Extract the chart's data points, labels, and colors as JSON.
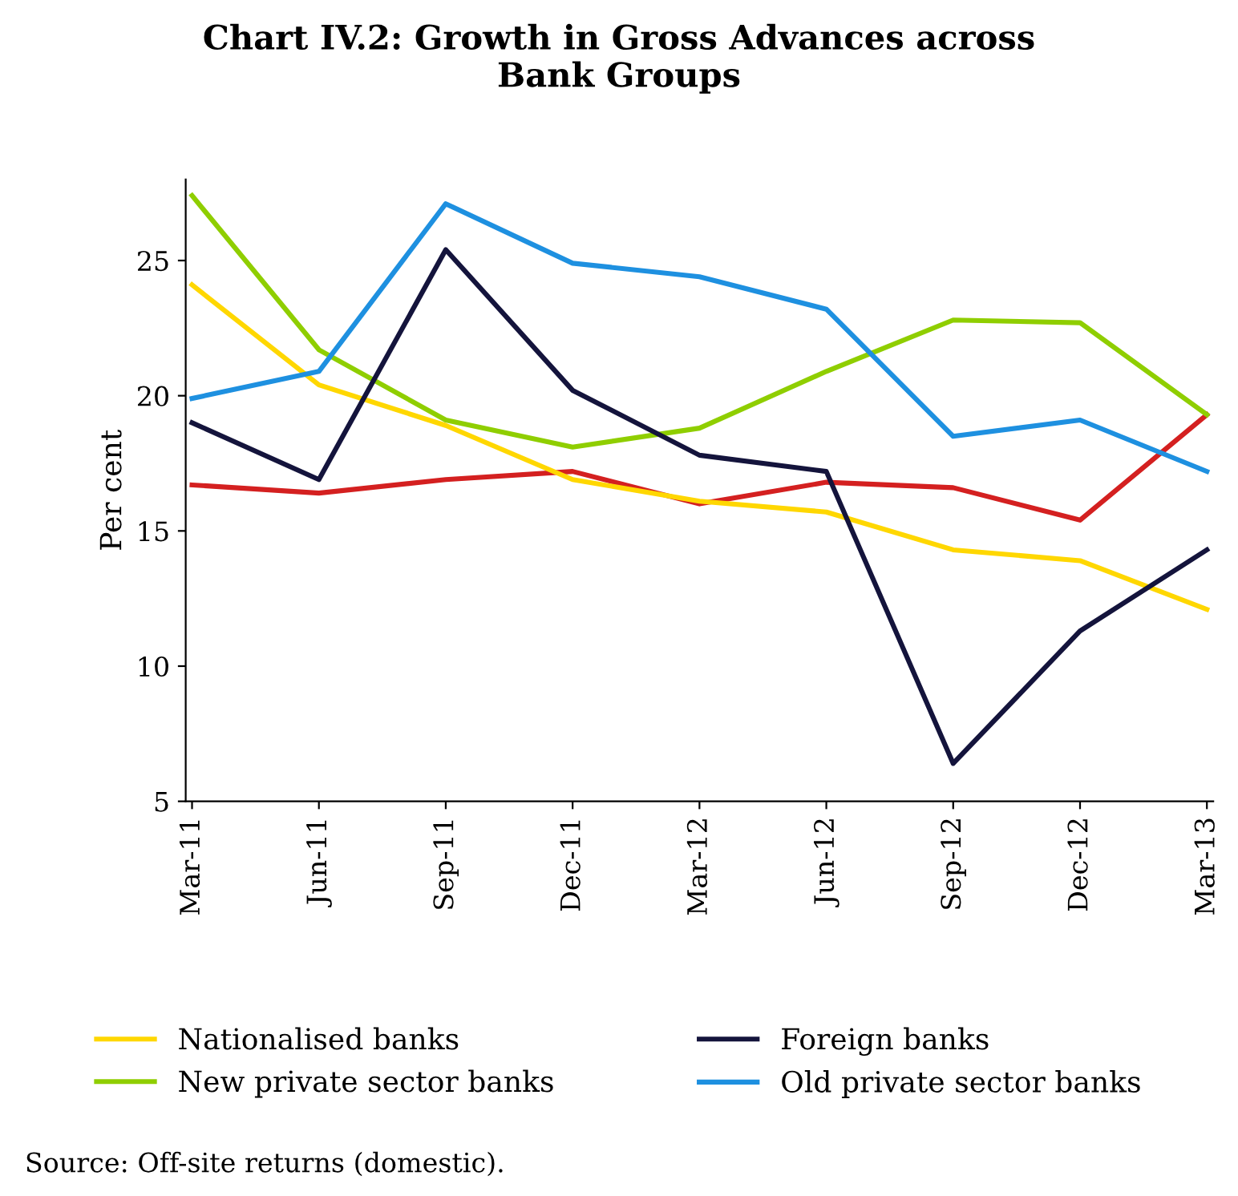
{
  "chart_data": {
    "type": "line",
    "title": "Chart IV.2: Growth in Gross Advances across\nBank Groups",
    "ylabel": "Per cent",
    "categories": [
      "Mar-11",
      "Jun-11",
      "Sep-11",
      "Dec-11",
      "Mar-12",
      "Jun-12",
      "Sep-12",
      "Dec-12",
      "Mar-13"
    ],
    "series": [
      {
        "color": "#d42020",
        "values": [
          16.7,
          16.4,
          16.9,
          17.2,
          16.0,
          16.8,
          16.6,
          15.4,
          19.3
        ]
      },
      {
        "name": "Nationalised banks",
        "color": "#ffd700",
        "values": [
          24.1,
          20.4,
          18.9,
          16.9,
          16.1,
          15.7,
          14.3,
          13.9,
          12.1
        ]
      },
      {
        "name": "New private sector banks",
        "color": "#8fce00",
        "values": [
          27.4,
          21.7,
          19.1,
          18.1,
          18.8,
          20.9,
          22.8,
          22.7,
          19.3
        ]
      },
      {
        "name": "Foreign banks",
        "color": "#14143c",
        "values": [
          19.0,
          16.9,
          25.4,
          20.2,
          17.8,
          17.2,
          6.4,
          11.3,
          14.3
        ]
      },
      {
        "name": "Old private sector banks",
        "color": "#1e90e0",
        "values": [
          19.9,
          20.9,
          27.1,
          24.9,
          24.4,
          23.2,
          18.5,
          19.1,
          17.2
        ]
      }
    ],
    "ylim": [
      5,
      28
    ],
    "yticks": [
      5,
      10,
      15,
      20,
      25
    ],
    "grid": false,
    "legend": "bottom",
    "marker": "none",
    "line_style": "solid",
    "annotations": [
      "Source: Off-site returns (domestic)."
    ]
  }
}
